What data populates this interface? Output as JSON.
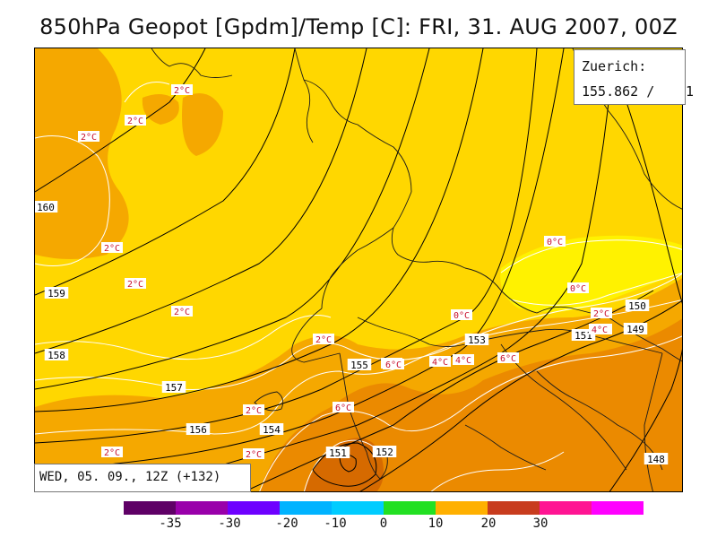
{
  "title": "850hPa Geopot [Gpdm]/Temp [C]: FRI, 31. AUG 2007, 00Z",
  "station": {
    "name": "Zuerich:",
    "value": "155.862 /",
    "extra": "1"
  },
  "run_label": "WED, 05. 09., 12Z (+132)",
  "colors": {
    "map_base": "#FFD700",
    "warm_orange": "#F5A800",
    "hot_orange": "#EB8A00",
    "very_hot": "#D66A00",
    "cool_yellow": "#FFF200",
    "isotherm": "#ffffff",
    "isohypse": "#000000",
    "temp_label": "#C8102E"
  },
  "geopotential_labels": [
    "160",
    "159",
    "158",
    "157",
    "156",
    "154",
    "155",
    "153",
    "151",
    "152",
    "150",
    "149",
    "148",
    "151"
  ],
  "temperature_labels": [
    "2°C",
    "2°C",
    "2°C",
    "2°C",
    "2°C",
    "2°C",
    "2°C",
    "2°C",
    "2°C",
    "2°C",
    "4°C",
    "4°C",
    "6°C",
    "6°C",
    "4°C",
    "6°C",
    "0°C",
    "0°C",
    "0°C",
    "2°C",
    "2°C",
    "4°C"
  ],
  "legend": {
    "colors": [
      "#5F0066",
      "#9900AA",
      "#6E00FF",
      "#00B3FF",
      "#00CCFF",
      "#22E022",
      "#FFB000",
      "#C83C1E",
      "#FF1493",
      "#FF00FF"
    ],
    "ticks": [
      "-35",
      "-30",
      "-20",
      "-10",
      "0",
      "10",
      "20",
      "30"
    ]
  }
}
